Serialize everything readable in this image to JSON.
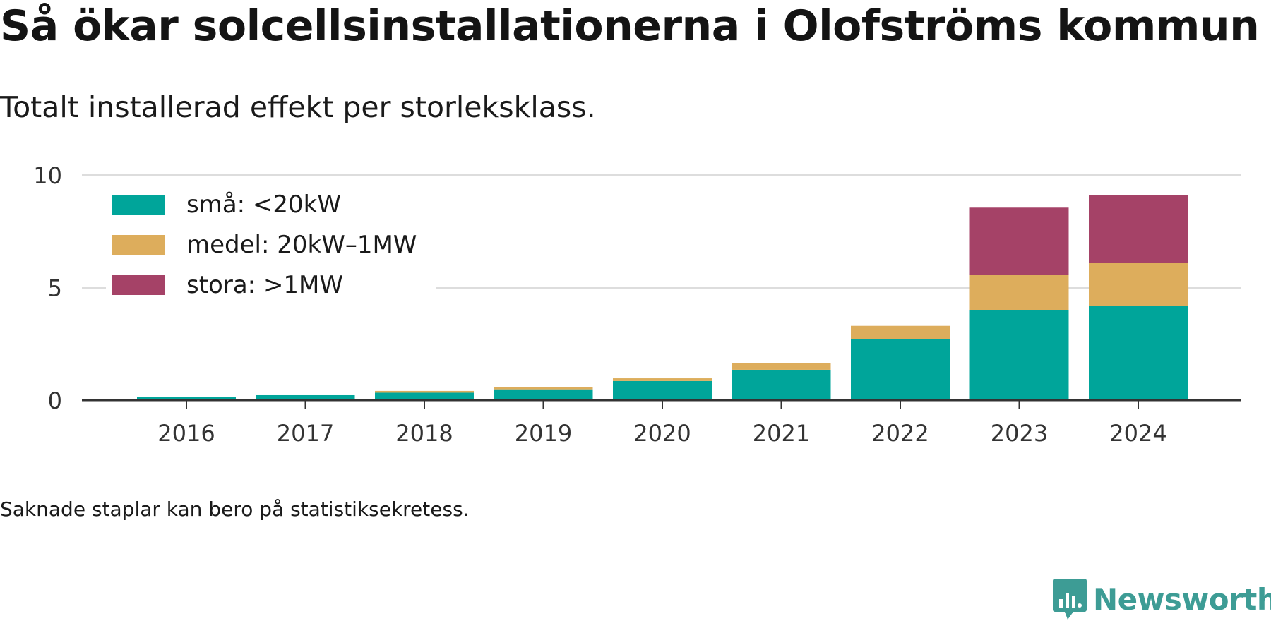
{
  "title": "Så ökar solcellsinstallationerna i Olofströms kommun",
  "subtitle": "Totalt installerad effekt per storleksklass.",
  "footnote": "Saknade staplar kan bero på statistiksekretess.",
  "brand": {
    "name": "Newsworthy",
    "color": "#3d9c95"
  },
  "chart_data": {
    "type": "bar",
    "stacked": true,
    "categories": [
      "2016",
      "2017",
      "2018",
      "2019",
      "2020",
      "2021",
      "2022",
      "2023",
      "2024"
    ],
    "series": [
      {
        "name": "små: <20kW",
        "color": "#00a59a",
        "values": [
          0.15,
          0.22,
          0.33,
          0.48,
          0.85,
          1.35,
          2.7,
          4.0,
          4.2
        ]
      },
      {
        "name": "medel: 20kW–1MW",
        "color": "#ddad5c",
        "values": [
          0.0,
          0.0,
          0.08,
          0.1,
          0.12,
          0.28,
          0.6,
          1.55,
          1.9
        ]
      },
      {
        "name": "stora: >1MW",
        "color": "#a54267",
        "values": [
          0.0,
          0.0,
          0.0,
          0.0,
          0.0,
          0.0,
          0.0,
          3.0,
          3.0
        ]
      }
    ],
    "y_ticks": [
      "0",
      "5",
      "10"
    ],
    "ylim": [
      0,
      10
    ],
    "xlabel": "",
    "ylabel": "",
    "grid": true,
    "legend_position": "top-left"
  }
}
